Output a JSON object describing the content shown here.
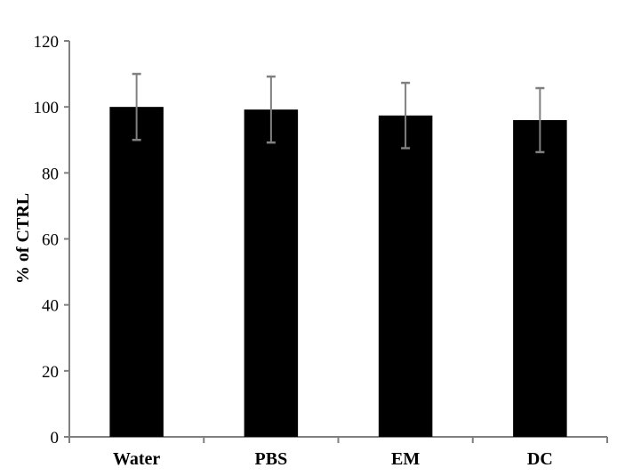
{
  "chart_data": {
    "type": "bar",
    "title": "",
    "xlabel": "",
    "ylabel": "% of CTRL",
    "ylim": [
      0,
      120
    ],
    "yticks": [
      0,
      20,
      40,
      60,
      80,
      100,
      120
    ],
    "categories": [
      "Water",
      "PBS",
      "EM",
      "DC"
    ],
    "values": [
      100,
      99.2,
      97.4,
      96.0
    ],
    "error": [
      10,
      10,
      9.9,
      9.7
    ],
    "grid": false,
    "colors": {
      "bar": "#000000",
      "error_bar": "#808080",
      "axis": "#808080"
    }
  }
}
